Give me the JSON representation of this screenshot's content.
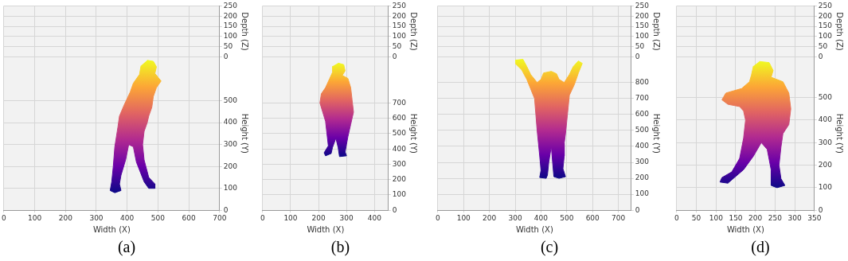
{
  "chart_data": [
    {
      "type": "polygon",
      "title": "(a)",
      "x_label": "Width (X)",
      "y_label": "Height (Y)",
      "z_label": "Depth (Z)",
      "x": [
        465,
        485,
        495,
        490,
        510,
        495,
        485,
        480,
        470,
        465,
        455,
        450,
        455,
        470,
        490,
        490,
        470,
        455,
        430,
        420,
        405,
        395,
        380,
        375,
        380,
        360,
        345,
        350,
        355,
        360,
        370,
        375,
        390,
        410,
        420,
        440,
        445
      ],
      "values": [
        685,
        680,
        655,
        625,
        590,
        560,
        520,
        470,
        430,
        400,
        360,
        300,
        230,
        150,
        120,
        100,
        100,
        130,
        220,
        290,
        300,
        230,
        160,
        120,
        90,
        80,
        90,
        130,
        200,
        290,
        380,
        430,
        480,
        540,
        580,
        620,
        660
      ],
      "xlim": [
        0,
        700
      ],
      "xticks": [
        0,
        100,
        200,
        300,
        400,
        500,
        600,
        700
      ],
      "ylim": [
        0,
        700
      ],
      "yticks": [
        0,
        100,
        200,
        300,
        400,
        500
      ],
      "zlim": [
        0,
        250
      ],
      "zticks": [
        0,
        50,
        100,
        150,
        200,
        250
      ],
      "grid": true
    },
    {
      "type": "polygon",
      "title": "(b)",
      "x_label": "Width (X)",
      "y_label": "Height (Y)",
      "z_label": "Depth (Z)",
      "x": [
        270,
        290,
        295,
        285,
        305,
        315,
        320,
        325,
        315,
        305,
        300,
        295,
        300,
        275,
        270,
        262,
        250,
        245,
        225,
        220,
        235,
        230,
        225,
        215,
        205,
        210,
        225,
        240,
        250,
        250
      ],
      "values": [
        960,
        950,
        910,
        880,
        860,
        800,
        720,
        640,
        560,
        480,
        430,
        380,
        355,
        350,
        410,
        470,
        410,
        370,
        355,
        375,
        420,
        500,
        580,
        640,
        700,
        760,
        800,
        860,
        900,
        940
      ],
      "xlim": [
        0,
        450
      ],
      "xticks": [
        0,
        100,
        200,
        300,
        400
      ],
      "ylim": [
        0,
        1000
      ],
      "yticks": [
        0,
        100,
        200,
        300,
        400,
        500,
        600,
        700
      ],
      "zlim": [
        0,
        250
      ],
      "zticks": [
        0,
        50,
        100,
        150,
        200,
        250
      ],
      "grid": true
    },
    {
      "type": "polygon",
      "title": "(c)",
      "x_label": "Width (X)",
      "y_label": "Height (Y)",
      "z_label": "Depth (Z)",
      "x": [
        300,
        330,
        345,
        360,
        385,
        400,
        410,
        440,
        460,
        470,
        490,
        510,
        525,
        545,
        560,
        545,
        530,
        510,
        505,
        500,
        495,
        490,
        490,
        485,
        495,
        470,
        450,
        445,
        440,
        430,
        425,
        420,
        395,
        400,
        395,
        390,
        385,
        380,
        375,
        360,
        345,
        325,
        300
      ],
      "values": [
        940,
        945,
        900,
        850,
        800,
        820,
        860,
        870,
        855,
        820,
        800,
        850,
        900,
        935,
        920,
        860,
        790,
        720,
        640,
        560,
        480,
        420,
        340,
        260,
        210,
        200,
        210,
        300,
        400,
        300,
        220,
        200,
        205,
        250,
        340,
        420,
        500,
        600,
        700,
        760,
        820,
        880,
        920
      ],
      "xlim": [
        0,
        750
      ],
      "xticks": [
        0,
        100,
        200,
        300,
        400,
        500,
        600,
        700
      ],
      "ylim": [
        0,
        960
      ],
      "yticks": [
        0,
        100,
        200,
        300,
        400,
        500,
        600,
        700,
        800
      ],
      "zlim": [
        0,
        250
      ],
      "zticks": [
        0,
        50,
        100,
        150,
        200,
        250
      ],
      "grid": true
    },
    {
      "type": "polygon",
      "title": "(d)",
      "x_label": "Width (X)",
      "y_label": "Height (Y)",
      "z_label": "Depth (Z)",
      "x": [
        210,
        235,
        245,
        240,
        270,
        285,
        290,
        285,
        270,
        265,
        260,
        265,
        275,
        255,
        240,
        240,
        230,
        215,
        195,
        170,
        150,
        130,
        110,
        115,
        140,
        160,
        170,
        175,
        170,
        160,
        130,
        115,
        125,
        165,
        185,
        190,
        195
      ],
      "values": [
        660,
        655,
        620,
        590,
        570,
        520,
        450,
        380,
        340,
        280,
        200,
        140,
        110,
        100,
        110,
        180,
        270,
        300,
        240,
        180,
        150,
        120,
        125,
        145,
        170,
        230,
        320,
        400,
        440,
        460,
        470,
        490,
        520,
        540,
        570,
        600,
        640
      ],
      "xlim": [
        0,
        350
      ],
      "xticks": [
        0,
        50,
        100,
        150,
        200,
        250,
        300,
        350
      ],
      "ylim": [
        0,
        680
      ],
      "yticks": [
        0,
        100,
        200,
        300,
        400,
        500
      ],
      "zlim": [
        0,
        250
      ],
      "zticks": [
        0,
        50,
        100,
        150,
        200,
        250
      ],
      "grid": true
    }
  ]
}
